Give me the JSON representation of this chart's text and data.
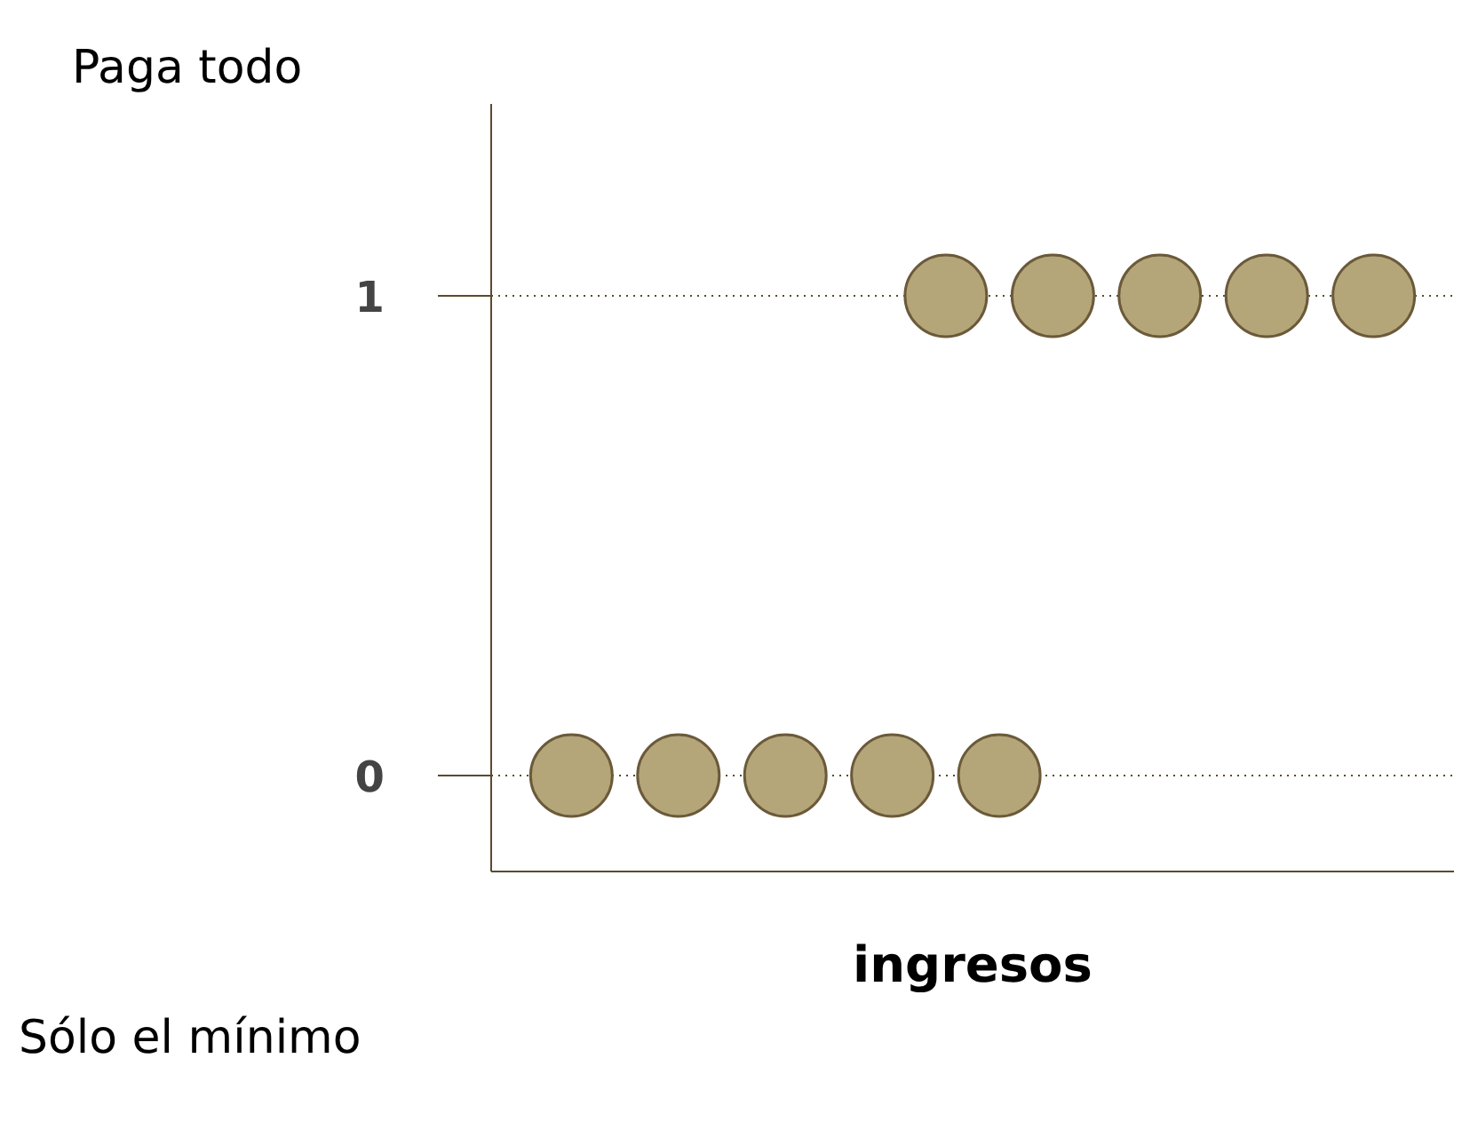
{
  "chart_data": {
    "type": "scatter",
    "xlabel": "ingresos",
    "categories": [
      null,
      null,
      null,
      null,
      null,
      null,
      null,
      null,
      null,
      null,
      null,
      null,
      null,
      null,
      null,
      null,
      null,
      null
    ],
    "series": [
      {
        "color": "#b5a67a",
        "values": [
          null,
          0,
          null,
          0,
          null,
          0,
          null,
          0,
          null,
          0,
          null,
          null,
          null,
          null,
          null,
          null,
          null,
          null
        ]
      },
      {
        "color": "#b5a67a",
        "values": [
          null,
          null,
          null,
          null,
          null,
          null,
          null,
          null,
          1,
          null,
          1,
          null,
          1,
          null,
          1,
          null,
          1,
          null
        ]
      }
    ],
    "ylim": [
      -0.2,
      1.4
    ],
    "yticks": [
      0,
      1
    ],
    "grid": "y",
    "marker": "circle",
    "tick_labels": "y",
    "annotations": [
      "Paga todo",
      "Sólo el mínimo"
    ]
  }
}
